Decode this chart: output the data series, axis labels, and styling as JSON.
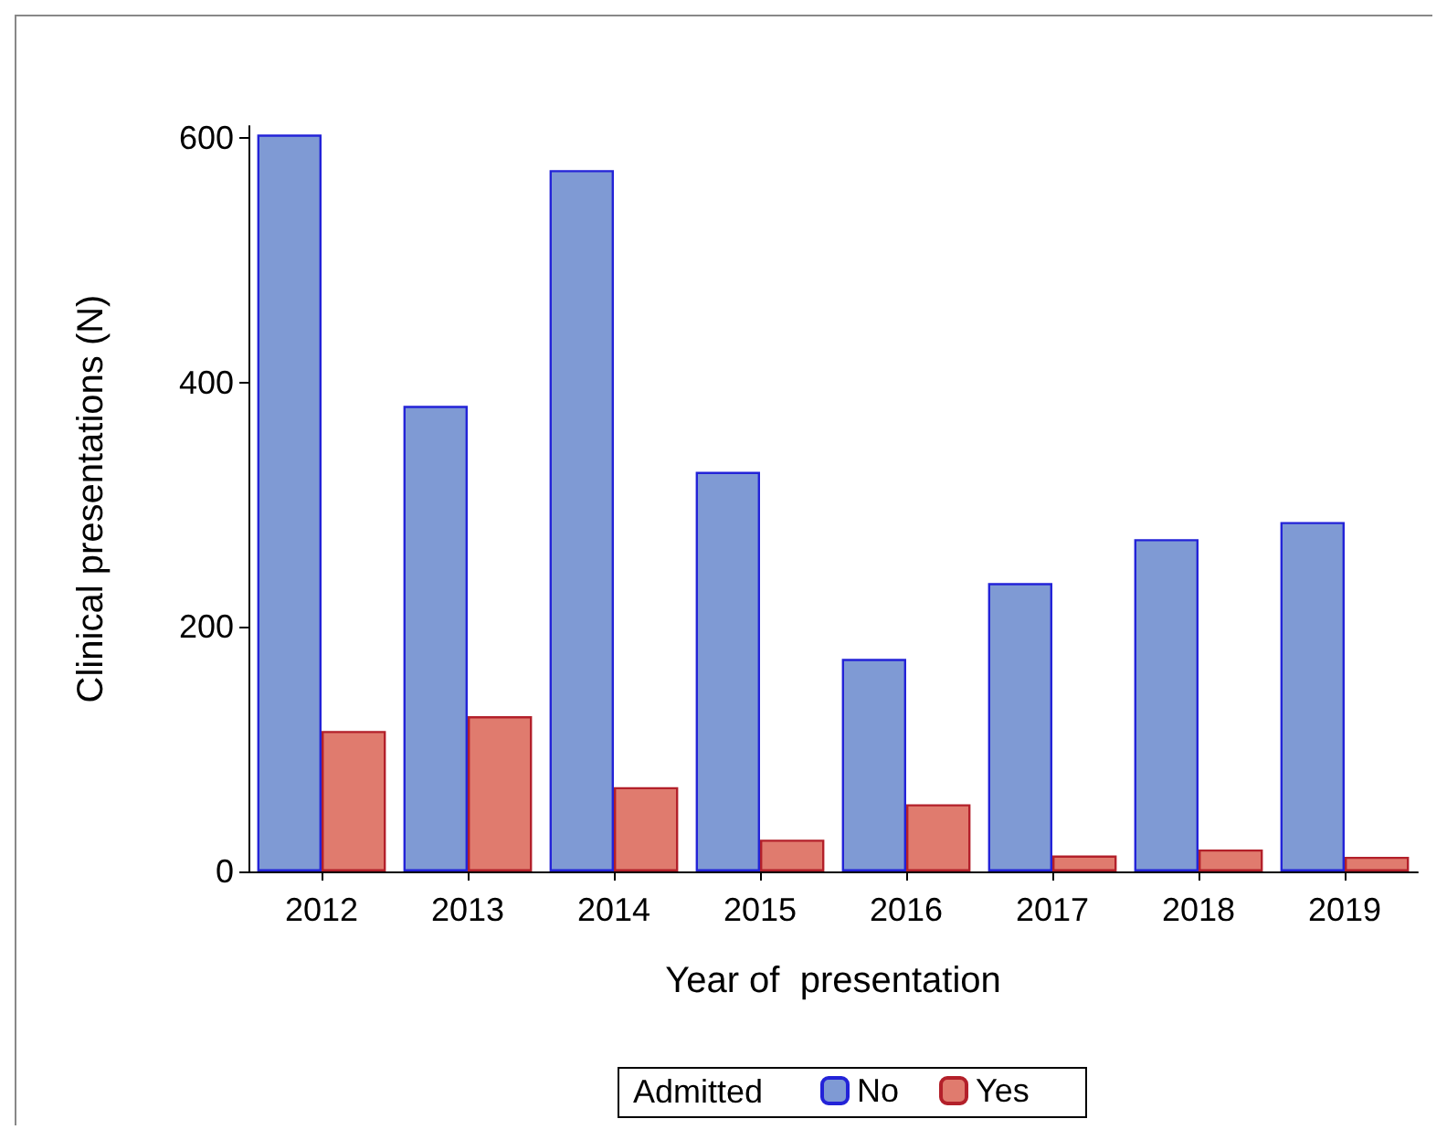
{
  "chart_data": {
    "type": "bar",
    "xlabel": "Year of  presentation",
    "ylabel": "Clinical presentations (N)",
    "legend_title": "Admitted",
    "categories": [
      "2012",
      "2013",
      "2014",
      "2015",
      "2016",
      "2017",
      "2018",
      "2019"
    ],
    "series": [
      {
        "name": "No",
        "color": "#7f9ad4",
        "values": [
          603,
          381,
          574,
          327,
          174,
          236,
          272,
          286
        ]
      },
      {
        "name": "Yes",
        "color": "#e07b6e",
        "values": [
          115,
          127,
          69,
          26,
          55,
          13,
          18,
          12
        ]
      }
    ],
    "ylim": [
      0,
      610
    ],
    "yticks": [
      0,
      200,
      400,
      600
    ],
    "grid": false,
    "legend": "bottom"
  }
}
